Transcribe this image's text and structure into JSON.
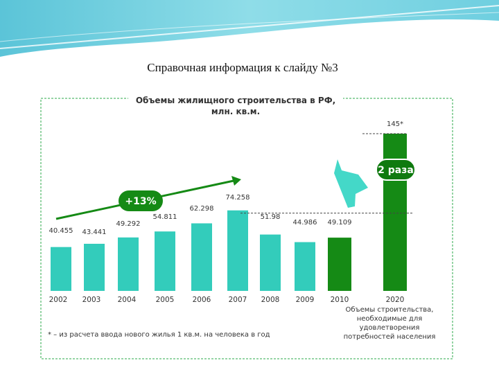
{
  "slide_title": "Справочная информация к слайду №3",
  "colors": {
    "teal": "#33CCBB",
    "green": "#158A15",
    "dark_green": "#0F7A0F",
    "accent_arrow": "#44D8C8"
  },
  "chart_data": {
    "type": "bar",
    "title_line1": "Объемы жилищного строительства в РФ,",
    "title_line2": "млн. кв.м.",
    "categories": [
      "2002",
      "2003",
      "2004",
      "2005",
      "2006",
      "2007",
      "2008",
      "2009",
      "2010",
      "2020"
    ],
    "values": [
      40.455,
      43.441,
      49.292,
      54.811,
      62.298,
      74.258,
      51.98,
      44.986,
      49.109,
      145
    ],
    "value_labels": [
      "40.455",
      "43.441",
      "49.292",
      "54.811",
      "62.298",
      "74.258",
      "51.98",
      "44.986",
      "49.109",
      "145*"
    ],
    "bar_colors": [
      "teal",
      "teal",
      "teal",
      "teal",
      "teal",
      "teal",
      "teal",
      "teal",
      "green",
      "green"
    ],
    "growth_badge": "+13%",
    "ratio_badge": "2 раза",
    "category_note_2020": [
      "Объемы строительства,",
      "необходимые для",
      "удовлетворения",
      "потребностей населения"
    ],
    "footnote": "* – из расчета ввода нового жилья 1 кв.м. на человека в год",
    "xlabel": "",
    "ylabel": "",
    "grid": false
  }
}
